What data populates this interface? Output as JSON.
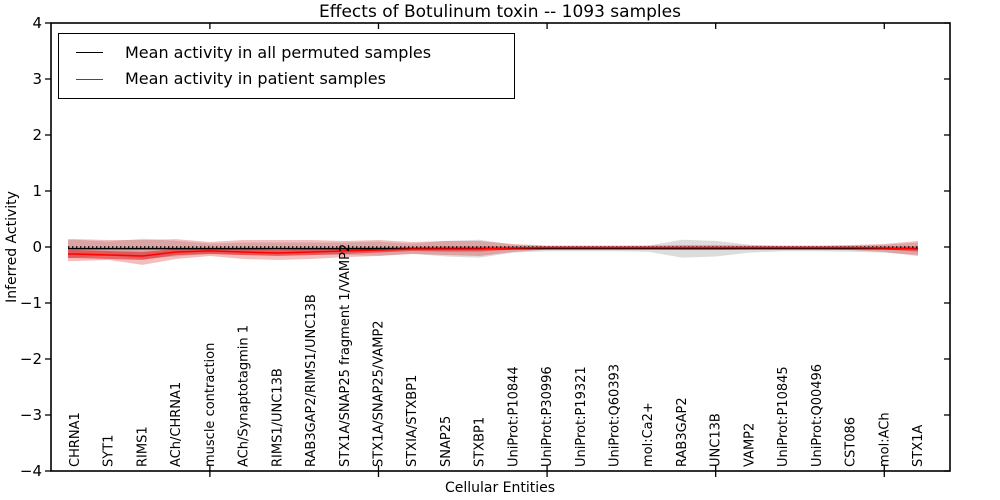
{
  "window": {
    "title": "Effects of Botulinum toxin -- 1093 samples"
  },
  "legend": {
    "items": [
      {
        "label": "Mean activity in all permuted samples",
        "color": "#000000"
      },
      {
        "label": "Mean activity in patient samples",
        "color": "#ff0000"
      }
    ]
  },
  "chart_data": {
    "type": "line",
    "title": "Effects of Botulinum toxin -- 1093 samples",
    "xlabel": "Cellular Entities",
    "ylabel": "Inferred Activity",
    "ylim": [
      -4,
      4
    ],
    "grid": false,
    "legend_position": "upper left",
    "yticks": [
      {
        "value": 4,
        "label": "4"
      },
      {
        "value": 3,
        "label": "3"
      },
      {
        "value": 2,
        "label": "2"
      },
      {
        "value": 1,
        "label": "1"
      },
      {
        "value": 0,
        "label": "0"
      },
      {
        "value": -1,
        "label": "−1"
      },
      {
        "value": -2,
        "label": "−2"
      },
      {
        "value": -3,
        "label": "−3"
      },
      {
        "value": -4,
        "label": "−4"
      }
    ],
    "xtick_indices": [
      4,
      9,
      14,
      19,
      24
    ],
    "categories": [
      "CHRNA1",
      "SYT1",
      "RIMS1",
      "ACh/CHRNA1",
      "muscle contraction",
      "ACh/Synaptotagmin 1",
      "RIMS1/UNC13B",
      "RAB3GAP2/RIMS1/UNC13B",
      "STX1A/SNAP25 fragment 1/VAMP2",
      "STX1A/SNAP25/VAMP2",
      "STXIA/STXBP1",
      "SNAP25",
      "STXBP1",
      "UniProt:P10844",
      "UniProt:P30996",
      "UniProt:P19321",
      "UniProt:Q60393",
      "mol:Ca2+",
      "RAB3GAP2",
      "UNC13B",
      "VAMP2",
      "UniProt:P10845",
      "UniProt:Q00496",
      "CST086",
      "mol:ACh",
      "STX1A"
    ],
    "series": [
      {
        "id": "permuted-mean",
        "name": "Mean activity in all permuted samples",
        "color": "#000000",
        "style": "solid",
        "values": [
          -0.03,
          -0.03,
          -0.03,
          -0.03,
          -0.03,
          -0.03,
          -0.03,
          -0.03,
          -0.03,
          -0.03,
          -0.03,
          -0.03,
          -0.03,
          -0.03,
          -0.03,
          -0.03,
          -0.03,
          -0.03,
          -0.03,
          -0.03,
          -0.03,
          -0.03,
          -0.03,
          -0.03,
          -0.03,
          -0.03
        ]
      },
      {
        "id": "zero-line",
        "name": "zero reference",
        "color": "#000000",
        "style": "dotted",
        "values": [
          0,
          0,
          0,
          0,
          0,
          0,
          0,
          0,
          0,
          0,
          0,
          0,
          0,
          0,
          0,
          0,
          0,
          0,
          0,
          0,
          0,
          0,
          0,
          0,
          0,
          0
        ]
      },
      {
        "id": "patient-mean",
        "name": "Mean activity in patient samples",
        "color": "#ff0000",
        "style": "solid",
        "values": [
          -0.125,
          -0.143,
          -0.16,
          -0.09,
          -0.07,
          -0.09,
          -0.107,
          -0.09,
          -0.07,
          -0.054,
          -0.036,
          -0.036,
          -0.036,
          -0.018,
          -0.01,
          -0.01,
          -0.01,
          -0.01,
          -0.01,
          -0.01,
          -0.01,
          -0.01,
          -0.01,
          -0.01,
          -0.018,
          -0.036
        ]
      }
    ],
    "bands": [
      {
        "id": "permuted-range",
        "color": "#808080",
        "opacity": 0.28,
        "upper": [
          0.13,
          0.095,
          0.15,
          0.11,
          0.06,
          0.08,
          0.08,
          0.08,
          0.08,
          0.095,
          0.06,
          0.11,
          0.13,
          0.04,
          0.015,
          0.015,
          0.015,
          0.025,
          0.13,
          0.11,
          0.04,
          0.015,
          0.015,
          0.025,
          0.04,
          0.08
        ],
        "lower": [
          -0.19,
          -0.155,
          -0.21,
          -0.17,
          -0.12,
          -0.14,
          -0.14,
          -0.14,
          -0.14,
          -0.155,
          -0.12,
          -0.17,
          -0.19,
          -0.1,
          -0.075,
          -0.075,
          -0.075,
          -0.085,
          -0.19,
          -0.17,
          -0.1,
          -0.075,
          -0.075,
          -0.085,
          -0.1,
          -0.14
        ]
      },
      {
        "id": "patient-outer",
        "color": "#dc2828",
        "opacity": 0.3,
        "upper": [
          0.14,
          0.125,
          0.125,
          0.14,
          0.09,
          0.125,
          0.125,
          0.125,
          0.107,
          0.125,
          0.09,
          0.107,
          0.107,
          0.054,
          0.027,
          0.027,
          0.027,
          0.027,
          0.036,
          0.036,
          0.027,
          0.027,
          0.027,
          0.036,
          0.054,
          0.107
        ],
        "lower": [
          -0.25,
          -0.232,
          -0.32,
          -0.214,
          -0.16,
          -0.214,
          -0.232,
          -0.214,
          -0.18,
          -0.16,
          -0.125,
          -0.143,
          -0.16,
          -0.09,
          -0.045,
          -0.045,
          -0.045,
          -0.045,
          -0.054,
          -0.054,
          -0.045,
          -0.045,
          -0.045,
          -0.054,
          -0.09,
          -0.16
        ]
      },
      {
        "id": "patient-inner",
        "color": "#e61e1e",
        "opacity": 0.55,
        "upper": [
          -0.054,
          -0.072,
          -0.089,
          -0.036,
          -0.016,
          -0.036,
          -0.053,
          -0.036,
          -0.016,
          -0.009,
          0.0,
          0.009,
          0.009,
          0.009,
          0.008,
          0.008,
          0.008,
          0.008,
          0.008,
          0.008,
          0.008,
          0.008,
          0.008,
          0.008,
          0.009,
          0.009
        ],
        "lower": [
          -0.196,
          -0.214,
          -0.231,
          -0.144,
          -0.124,
          -0.144,
          -0.161,
          -0.144,
          -0.124,
          -0.099,
          -0.072,
          -0.081,
          -0.081,
          -0.045,
          -0.028,
          -0.028,
          -0.028,
          -0.028,
          -0.028,
          -0.028,
          -0.028,
          -0.028,
          -0.028,
          -0.028,
          -0.045,
          -0.081
        ]
      }
    ]
  }
}
